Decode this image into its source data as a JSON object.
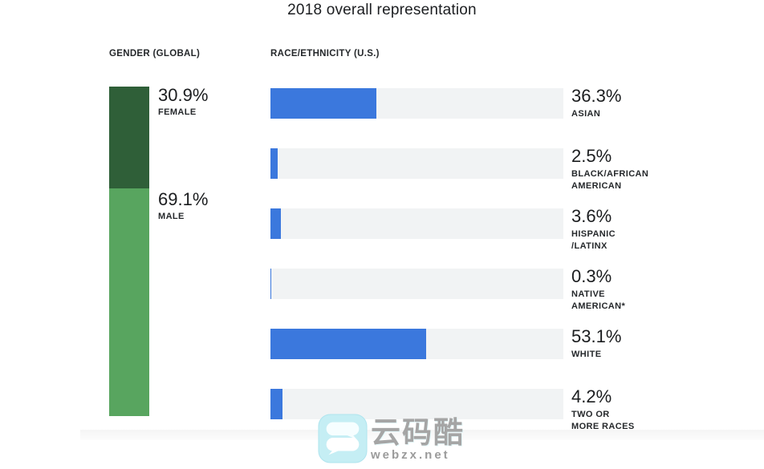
{
  "title": "2018 overall representation",
  "colors": {
    "female_green": "#2f5f38",
    "male_green": "#58a55f",
    "bar_blue": "#3b78dd",
    "bar_track": "#f1f3f4"
  },
  "gender_section": {
    "header": "GENDER (GLOBAL)",
    "segments": [
      {
        "label": "FEMALE",
        "value": "30.9%",
        "pct": 30.9
      },
      {
        "label": "MALE",
        "value": "69.1%",
        "pct": 69.1
      }
    ]
  },
  "race_section": {
    "header": "RACE/ETHNICITY  (U.S.)",
    "bars": [
      {
        "value": "36.3%",
        "pct": 36.3,
        "label_lines": [
          "ASIAN"
        ]
      },
      {
        "value": "2.5%",
        "pct": 2.5,
        "label_lines": [
          "BLACK/AFRICAN",
          "AMERICAN"
        ]
      },
      {
        "value": "3.6%",
        "pct": 3.6,
        "label_lines": [
          "HISPANIC",
          "/LATINX"
        ]
      },
      {
        "value": "0.3%",
        "pct": 0.3,
        "label_lines": [
          "NATIVE",
          "AMERICAN*"
        ]
      },
      {
        "value": "53.1%",
        "pct": 53.1,
        "label_lines": [
          "WHITE"
        ]
      },
      {
        "value": "4.2%",
        "pct": 4.2,
        "label_lines": [
          "TWO OR",
          "MORE RACES"
        ]
      }
    ]
  },
  "watermark": {
    "brand": "云码酷",
    "site": "webzx.net"
  },
  "chart_data": [
    {
      "type": "bar",
      "orientation": "vertical-stacked",
      "title": "GENDER (GLOBAL)",
      "categories": [
        "FEMALE",
        "MALE"
      ],
      "values": [
        30.9,
        69.1
      ],
      "unit": "%",
      "colors": [
        "#2f5f38",
        "#58a55f"
      ],
      "ylim": [
        0,
        100
      ],
      "grid": false,
      "legend": "none"
    },
    {
      "type": "bar",
      "orientation": "horizontal",
      "title": "RACE/ETHNICITY (U.S.)",
      "categories": [
        "ASIAN",
        "BLACK/AFRICAN AMERICAN",
        "HISPANIC/LATINX",
        "NATIVE AMERICAN*",
        "WHITE",
        "TWO OR MORE RACES"
      ],
      "values": [
        36.3,
        2.5,
        3.6,
        0.3,
        53.1,
        4.2
      ],
      "unit": "%",
      "xlim": [
        0,
        100
      ],
      "bar_color": "#3b78dd",
      "track_color": "#f1f3f4",
      "grid": false,
      "legend": "none"
    }
  ]
}
